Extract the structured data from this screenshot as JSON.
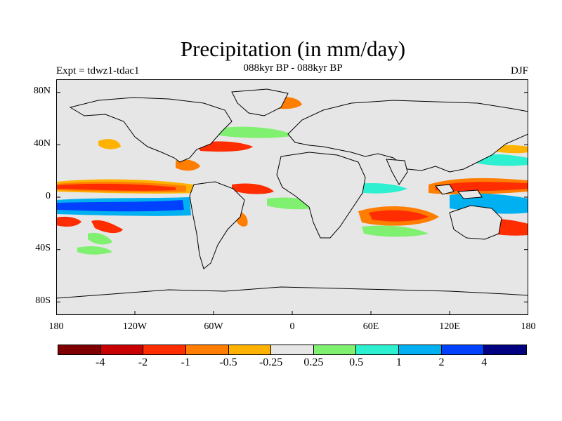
{
  "title": "Precipitation (in mm/day)",
  "subtitle": "088kyr BP - 088kyr BP",
  "left_label": "Expt = tdwz1-tdac1",
  "right_label": "DJF",
  "map": {
    "ocean_color": "#e6e6e6",
    "coast_color": "#000000",
    "lat_ticks": [
      "80N",
      "40N",
      "0",
      "40S",
      "80S"
    ],
    "lon_ticks": [
      "180",
      "120W",
      "60W",
      "0",
      "60E",
      "120E",
      "180"
    ]
  },
  "colorbar": {
    "colors": [
      "#7f0000",
      "#c80000",
      "#ff2d00",
      "#ff7d00",
      "#ffb300",
      "#e6e6e6",
      "#80f070",
      "#2cf0d0",
      "#00b0f0",
      "#0040ff",
      "#000080"
    ],
    "labels": [
      "-4",
      "-2",
      "-1",
      "-0.5",
      "-0.25",
      "0.25",
      "0.5",
      "1",
      "2",
      "4"
    ]
  }
}
